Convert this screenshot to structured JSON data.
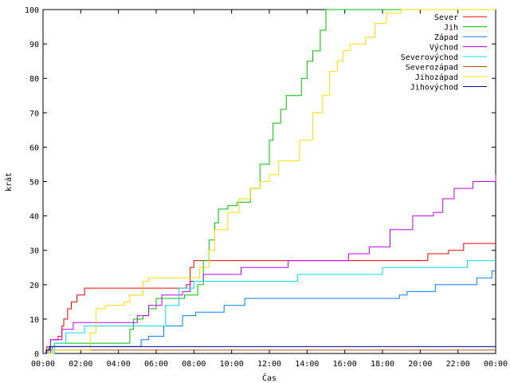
{
  "chart_data": {
    "type": "line",
    "xlabel": "Čas",
    "ylabel": "krát",
    "xlim": [
      0,
      24
    ],
    "ylim": [
      0,
      100
    ],
    "x_ticks": [
      {
        "v": 0,
        "label": "00:00"
      },
      {
        "v": 2,
        "label": "02:00"
      },
      {
        "v": 4,
        "label": "04:00"
      },
      {
        "v": 6,
        "label": "06:00"
      },
      {
        "v": 8,
        "label": "08:00"
      },
      {
        "v": 10,
        "label": "10:00"
      },
      {
        "v": 12,
        "label": "12:00"
      },
      {
        "v": 14,
        "label": "14:00"
      },
      {
        "v": 16,
        "label": "16:00"
      },
      {
        "v": 18,
        "label": "18:00"
      },
      {
        "v": 20,
        "label": "20:00"
      },
      {
        "v": 22,
        "label": "22:00"
      },
      {
        "v": 24,
        "label": "00:00"
      }
    ],
    "y_ticks": [
      {
        "v": 0,
        "label": "0"
      },
      {
        "v": 10,
        "label": "10"
      },
      {
        "v": 20,
        "label": "20"
      },
      {
        "v": 30,
        "label": "30"
      },
      {
        "v": 40,
        "label": "40"
      },
      {
        "v": 50,
        "label": "50"
      },
      {
        "v": 60,
        "label": "60"
      },
      {
        "v": 70,
        "label": "70"
      },
      {
        "v": 80,
        "label": "80"
      },
      {
        "v": 90,
        "label": "90"
      },
      {
        "v": 100,
        "label": "100"
      }
    ],
    "legend_position": "top-right",
    "series": [
      {
        "name": "Sever",
        "color": "#ff0000",
        "points": [
          [
            0,
            0
          ],
          [
            0.2,
            2
          ],
          [
            0.4,
            4
          ],
          [
            0.8,
            5
          ],
          [
            1.0,
            8
          ],
          [
            1.1,
            10
          ],
          [
            1.3,
            13
          ],
          [
            1.5,
            15
          ],
          [
            1.8,
            17
          ],
          [
            2.2,
            19
          ],
          [
            5.0,
            19
          ],
          [
            6.0,
            19
          ],
          [
            7.6,
            20
          ],
          [
            7.8,
            25
          ],
          [
            8.0,
            27
          ],
          [
            13.0,
            27
          ],
          [
            20.2,
            27
          ],
          [
            20.4,
            29
          ],
          [
            21.5,
            30
          ],
          [
            22.3,
            32
          ],
          [
            24,
            32
          ]
        ]
      },
      {
        "name": "Jih",
        "color": "#00c000",
        "points": [
          [
            0,
            0
          ],
          [
            0.3,
            2
          ],
          [
            0.6,
            3
          ],
          [
            4.4,
            3
          ],
          [
            4.6,
            7
          ],
          [
            4.8,
            10
          ],
          [
            5.3,
            11
          ],
          [
            5.6,
            13
          ],
          [
            6.0,
            16
          ],
          [
            7.5,
            17
          ],
          [
            8.2,
            20
          ],
          [
            8.5,
            27
          ],
          [
            8.8,
            33
          ],
          [
            9.1,
            38
          ],
          [
            9.3,
            42
          ],
          [
            9.8,
            43
          ],
          [
            10.3,
            44
          ],
          [
            11.0,
            48
          ],
          [
            11.5,
            55
          ],
          [
            12.0,
            62
          ],
          [
            12.2,
            67
          ],
          [
            12.6,
            71
          ],
          [
            12.9,
            75
          ],
          [
            13.3,
            75
          ],
          [
            13.7,
            80
          ],
          [
            14.0,
            85
          ],
          [
            14.3,
            88
          ],
          [
            14.7,
            94
          ],
          [
            15.0,
            100
          ],
          [
            24,
            100
          ]
        ]
      },
      {
        "name": "Západ",
        "color": "#0080ff",
        "points": [
          [
            0,
            0
          ],
          [
            0.5,
            2
          ],
          [
            5.0,
            2
          ],
          [
            5.2,
            4
          ],
          [
            5.6,
            5
          ],
          [
            6.3,
            5
          ],
          [
            6.4,
            8
          ],
          [
            7.2,
            8
          ],
          [
            7.4,
            11
          ],
          [
            8.1,
            12
          ],
          [
            9.5,
            12
          ],
          [
            9.6,
            14
          ],
          [
            10.6,
            14
          ],
          [
            10.7,
            16
          ],
          [
            18.7,
            16
          ],
          [
            18.9,
            17
          ],
          [
            19.3,
            18
          ],
          [
            20.6,
            18
          ],
          [
            20.8,
            20
          ],
          [
            22.8,
            20
          ],
          [
            23.0,
            22
          ],
          [
            23.8,
            24
          ],
          [
            24,
            24
          ]
        ]
      },
      {
        "name": "Východ",
        "color": "#c000ff",
        "points": [
          [
            0,
            0
          ],
          [
            0.4,
            4
          ],
          [
            1.0,
            7
          ],
          [
            1.6,
            9
          ],
          [
            4.8,
            9
          ],
          [
            5.0,
            11
          ],
          [
            5.6,
            14
          ],
          [
            6.3,
            17
          ],
          [
            7.4,
            18
          ],
          [
            7.8,
            21
          ],
          [
            8.0,
            21
          ],
          [
            8.5,
            23
          ],
          [
            9.7,
            23
          ],
          [
            10.5,
            25
          ],
          [
            11.5,
            25
          ],
          [
            13.0,
            27
          ],
          [
            16.0,
            27
          ],
          [
            16.2,
            29
          ],
          [
            16.9,
            29
          ],
          [
            17.3,
            31
          ],
          [
            18.2,
            31
          ],
          [
            18.4,
            36
          ],
          [
            19.0,
            36
          ],
          [
            19.6,
            40
          ],
          [
            20.7,
            41
          ],
          [
            21.2,
            45
          ],
          [
            21.8,
            48
          ],
          [
            22.8,
            50
          ],
          [
            23.9,
            50
          ],
          [
            24,
            52
          ]
        ]
      },
      {
        "name": "Severovýchod",
        "color": "#00e0e0",
        "points": [
          [
            0,
            0
          ],
          [
            0.6,
            3
          ],
          [
            0.8,
            3
          ],
          [
            1.2,
            6
          ],
          [
            2.2,
            8
          ],
          [
            5.0,
            8
          ],
          [
            6.2,
            8
          ],
          [
            6.5,
            14
          ],
          [
            7.2,
            19
          ],
          [
            8.0,
            21
          ],
          [
            13.3,
            21
          ],
          [
            13.5,
            23
          ],
          [
            17.8,
            23
          ],
          [
            18.0,
            25
          ],
          [
            22.3,
            25
          ],
          [
            22.5,
            27
          ],
          [
            24,
            27
          ]
        ]
      },
      {
        "name": "Severozápad",
        "color": "#c05000",
        "points": [
          [
            0,
            0
          ],
          [
            0.15,
            1
          ],
          [
            24,
            1
          ]
        ]
      },
      {
        "name": "Jihozápad",
        "color": "#ffdd00",
        "points": [
          [
            0,
            0
          ],
          [
            0.5,
            1
          ],
          [
            2.3,
            1
          ],
          [
            2.5,
            6
          ],
          [
            2.8,
            13
          ],
          [
            3.3,
            14
          ],
          [
            4.3,
            15
          ],
          [
            4.6,
            17
          ],
          [
            5.3,
            21
          ],
          [
            5.6,
            22
          ],
          [
            7.6,
            22
          ],
          [
            8.3,
            25
          ],
          [
            8.8,
            30
          ],
          [
            9.1,
            36
          ],
          [
            9.8,
            41
          ],
          [
            10.4,
            45
          ],
          [
            11.0,
            48
          ],
          [
            11.5,
            50
          ],
          [
            12.0,
            52
          ],
          [
            12.5,
            56
          ],
          [
            13.2,
            56
          ],
          [
            13.6,
            62
          ],
          [
            14.0,
            62
          ],
          [
            14.3,
            70
          ],
          [
            14.8,
            75
          ],
          [
            15.2,
            82
          ],
          [
            15.6,
            85
          ],
          [
            15.9,
            88
          ],
          [
            16.3,
            90
          ],
          [
            17.1,
            92
          ],
          [
            17.6,
            96
          ],
          [
            18.2,
            99
          ],
          [
            19.0,
            100
          ],
          [
            24,
            100
          ]
        ]
      },
      {
        "name": "Jihovýchod",
        "color": "#0000a0",
        "points": [
          [
            0,
            0
          ],
          [
            0.2,
            1
          ],
          [
            0.35,
            2
          ],
          [
            24,
            2
          ]
        ]
      }
    ]
  }
}
